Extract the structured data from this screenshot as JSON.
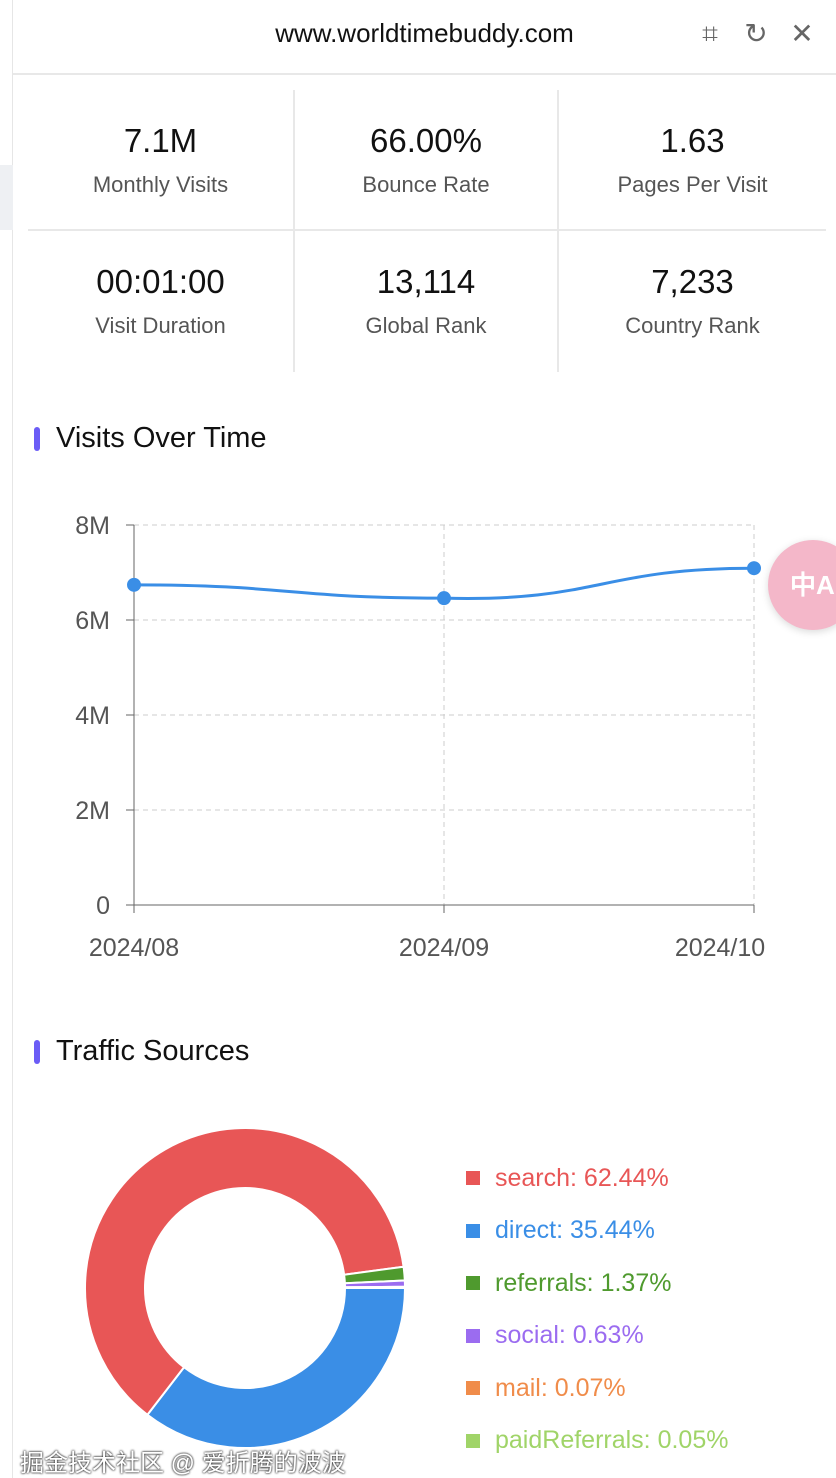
{
  "header": {
    "title": "www.worldtimebuddy.com",
    "icons": [
      "crop-icon",
      "refresh-icon",
      "close-icon"
    ]
  },
  "stats": [
    {
      "value": "7.1M",
      "label": "Monthly Visits"
    },
    {
      "value": "66.00%",
      "label": "Bounce Rate"
    },
    {
      "value": "1.63",
      "label": "Pages Per Visit"
    },
    {
      "value": "00:01:00",
      "label": "Visit Duration"
    },
    {
      "value": "13,114",
      "label": "Global Rank"
    },
    {
      "value": "7,233",
      "label": "Country Rank"
    }
  ],
  "sections": {
    "visits": "Visits Over Time",
    "traffic": "Traffic Sources"
  },
  "chart_data": [
    {
      "type": "line",
      "categories": [
        "2024/08",
        "2024/09",
        "2024/10"
      ],
      "values": [
        6.74,
        6.46,
        7.09
      ],
      "unit": "M",
      "yticks": [
        "0",
        "2M",
        "4M",
        "6M",
        "8M"
      ],
      "ylim": [
        0,
        8
      ],
      "grid": true,
      "color": "#3a8ee6"
    },
    {
      "type": "pie",
      "donut": true,
      "legend": "right",
      "slices": [
        {
          "name": "search",
          "value": 62.44,
          "label": "search: 62.44%",
          "color": "#e85656"
        },
        {
          "name": "direct",
          "value": 35.44,
          "label": "direct: 35.44%",
          "color": "#3a8ee6"
        },
        {
          "name": "referrals",
          "value": 1.37,
          "label": "referrals: 1.37%",
          "color": "#4f9a2e"
        },
        {
          "name": "social",
          "value": 0.63,
          "label": "social: 0.63%",
          "color": "#9b6cf0"
        },
        {
          "name": "mail",
          "value": 0.07,
          "label": "mail: 0.07%",
          "color": "#f08c4a"
        },
        {
          "name": "paidReferrals",
          "value": 0.05,
          "label": "paidReferrals: 0.05%",
          "color": "#a0d468"
        }
      ]
    }
  ],
  "translate_button": "中A",
  "watermark": "掘金技术社区 @ 爱折腾的波波"
}
